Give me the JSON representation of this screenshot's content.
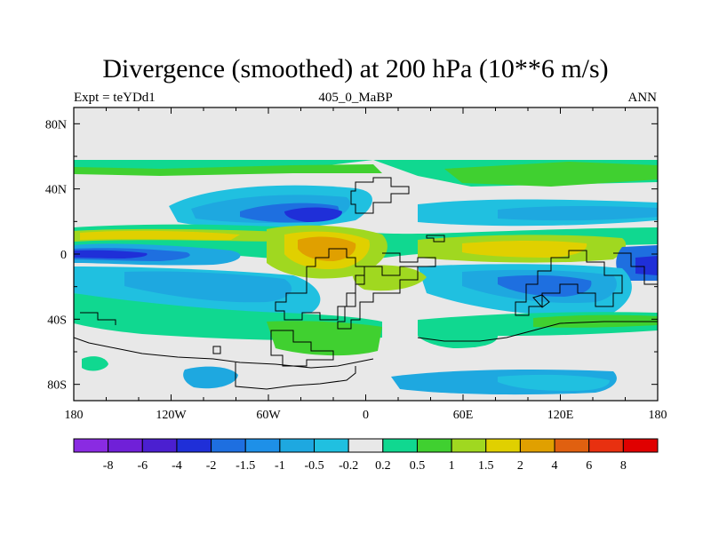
{
  "title": "Divergence (smoothed) at 200 hPa (10**6 m/s)",
  "subtitle_left": "Expt = teYDd1",
  "subtitle_center": "405_0_MaBP",
  "subtitle_right": "ANN",
  "y_axis_labels": [
    "80N",
    "40N",
    "0",
    "40S",
    "80S"
  ],
  "x_axis_labels": [
    "180",
    "120W",
    "60W",
    "0",
    "60E",
    "120E",
    "180"
  ],
  "colorbar": {
    "labels": [
      "-8",
      "-6",
      "-4",
      "-2",
      "-1.5",
      "-1",
      "-0.5",
      "-0.2",
      "0.2",
      "0.5",
      "1",
      "1.5",
      "2",
      "4",
      "6",
      "8"
    ],
    "colors": [
      "#8a2be2",
      "#7020d8",
      "#4b1fd0",
      "#1f2fd8",
      "#1e6fe0",
      "#1e90e8",
      "#1ea8e0",
      "#20c0e0",
      "#e8e8e8",
      "#10d890",
      "#40d030",
      "#a0d820",
      "#e0d000",
      "#e0a000",
      "#e06010",
      "#e83010",
      "#e00000"
    ]
  },
  "map_colors": {
    "neutral": "#e8e8e8",
    "coast": "#000000"
  }
}
